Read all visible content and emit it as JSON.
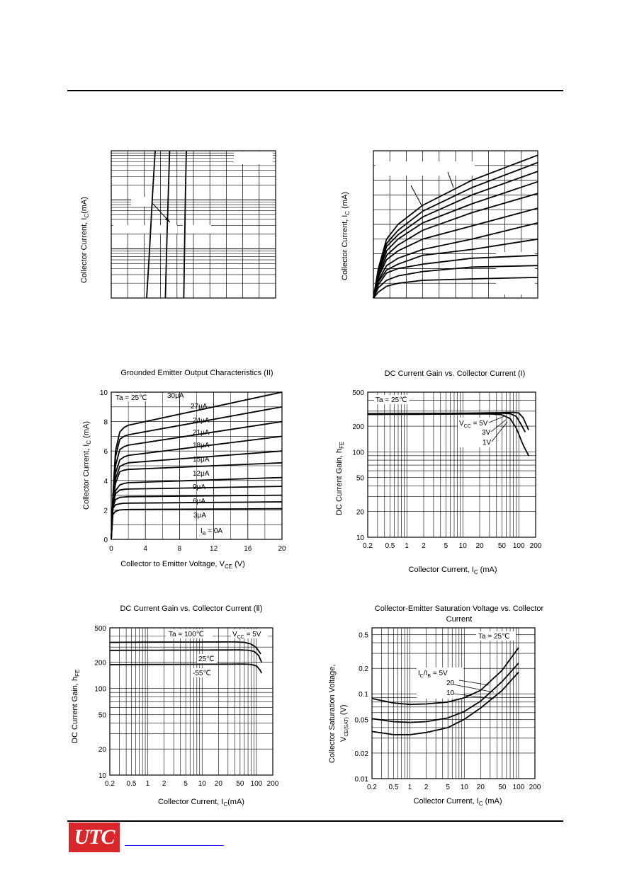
{
  "logo": {
    "text": "UTC",
    "color": "#d9262a"
  },
  "colors": {
    "line": "#000000",
    "grid": "#000000",
    "link": "#1a1aff"
  },
  "chart_data": [
    {
      "type": "line",
      "title": "",
      "xlabel": "",
      "ylabel": "Collector Current, I_C(mA)",
      "y_scale": "log",
      "grid": true,
      "series": [
        {
          "x": [
            0.0,
            0.2,
            0.4,
            0.6
          ],
          "y": [
            0.0,
            0.32,
            0.68,
            1.0
          ]
        },
        {
          "x": [
            0.22,
            0.33,
            0.44,
            0.52
          ],
          "y": [
            0.0,
            0.4,
            0.75,
            1.0
          ]
        },
        {
          "x": [
            0.42,
            0.48,
            0.54,
            0.6
          ],
          "y": [
            0.0,
            0.38,
            0.73,
            1.0
          ]
        }
      ]
    },
    {
      "type": "line",
      "title": "",
      "xlabel": "",
      "ylabel": "Collector Current, I_C (mA)",
      "grid": true,
      "series": [
        {
          "x": [
            0,
            0.03,
            0.08,
            0.15,
            0.3,
            0.6,
            1.0
          ],
          "y": [
            0,
            0.2,
            0.4,
            0.5,
            0.63,
            0.8,
            0.97
          ]
        },
        {
          "x": [
            0,
            0.03,
            0.08,
            0.15,
            0.3,
            0.6,
            1.0
          ],
          "y": [
            0,
            0.19,
            0.37,
            0.46,
            0.59,
            0.75,
            0.92
          ]
        },
        {
          "x": [
            0,
            0.03,
            0.08,
            0.15,
            0.3,
            0.6,
            1.0
          ],
          "y": [
            0,
            0.18,
            0.35,
            0.43,
            0.55,
            0.7,
            0.86
          ]
        },
        {
          "x": [
            0,
            0.03,
            0.08,
            0.15,
            0.3,
            0.6,
            1.0
          ],
          "y": [
            0,
            0.17,
            0.32,
            0.4,
            0.51,
            0.64,
            0.79
          ]
        },
        {
          "x": [
            0,
            0.03,
            0.08,
            0.15,
            0.3,
            0.6,
            1.0
          ],
          "y": [
            0,
            0.15,
            0.29,
            0.36,
            0.46,
            0.58,
            0.71
          ]
        },
        {
          "x": [
            0,
            0.03,
            0.08,
            0.15,
            0.3,
            0.6,
            1.0
          ],
          "y": [
            0,
            0.14,
            0.26,
            0.32,
            0.4,
            0.49,
            0.61
          ]
        },
        {
          "x": [
            0,
            0.03,
            0.08,
            0.15,
            0.3,
            0.6,
            1.0
          ],
          "y": [
            0,
            0.12,
            0.22,
            0.27,
            0.33,
            0.4,
            0.51
          ]
        },
        {
          "x": [
            0,
            0.03,
            0.08,
            0.15,
            0.3,
            0.6,
            1.0
          ],
          "y": [
            0,
            0.11,
            0.19,
            0.23,
            0.29,
            0.33,
            0.4
          ]
        },
        {
          "x": [
            0,
            0.03,
            0.08,
            0.15,
            0.3,
            0.6,
            1.0
          ],
          "y": [
            0,
            0.09,
            0.17,
            0.2,
            0.23,
            0.27,
            0.29
          ]
        },
        {
          "x": [
            0,
            0.03,
            0.08,
            0.15,
            0.3,
            0.6,
            1.0
          ],
          "y": [
            0,
            0.07,
            0.12,
            0.15,
            0.18,
            0.21,
            0.22
          ]
        },
        {
          "x": [
            0,
            0.03,
            0.08,
            0.15,
            0.3,
            0.6,
            1.0
          ],
          "y": [
            0,
            0.04,
            0.08,
            0.1,
            0.12,
            0.13,
            0.14
          ]
        }
      ]
    },
    {
      "type": "line",
      "title": "Grounded Emitter Output Characteristics (II)",
      "xlabel": "Collector to Emitter Voltage, V_CE (V)",
      "ylabel": "Collector Current, I_C (mA)",
      "xlim": [
        0,
        20
      ],
      "ylim": [
        0,
        10
      ],
      "xticks": [
        "0",
        "4",
        "8",
        "12",
        "16",
        "20"
      ],
      "yticks": [
        "0",
        "2",
        "4",
        "6",
        "8",
        "10"
      ],
      "grid": true,
      "annotations": {
        "ta": "Ta = 25℃"
      },
      "series": [
        {
          "name": "30μA",
          "x": [
            0,
            0.2,
            0.5,
            1.0,
            1.5,
            2.0,
            20
          ],
          "y": [
            0,
            3.0,
            6.0,
            7.3,
            7.6,
            7.75,
            10.0
          ]
        },
        {
          "name": "27μA",
          "x": [
            0,
            0.2,
            0.5,
            1.0,
            1.5,
            2.0,
            20
          ],
          "y": [
            0,
            2.9,
            5.6,
            6.8,
            7.0,
            7.1,
            9.0
          ]
        },
        {
          "name": "24μA",
          "x": [
            0,
            0.2,
            0.5,
            1.0,
            1.5,
            2.0,
            20
          ],
          "y": [
            0,
            2.8,
            5.0,
            6.1,
            6.3,
            6.4,
            8.0
          ]
        },
        {
          "name": "21μA",
          "x": [
            0,
            0.2,
            0.5,
            1.0,
            1.5,
            2.0,
            20
          ],
          "y": [
            0,
            2.7,
            4.5,
            5.4,
            5.6,
            5.7,
            7.0
          ]
        },
        {
          "name": "18μA",
          "x": [
            0,
            0.2,
            0.5,
            1.0,
            1.5,
            2.0,
            20
          ],
          "y": [
            0,
            2.6,
            4.1,
            4.95,
            5.1,
            5.2,
            6.0
          ]
        },
        {
          "name": "15μA",
          "x": [
            0,
            0.2,
            0.5,
            1.0,
            1.5,
            2.0,
            20
          ],
          "y": [
            0,
            2.5,
            3.8,
            4.6,
            4.7,
            4.75,
            5.2
          ]
        },
        {
          "name": "12μA",
          "x": [
            0,
            0.2,
            0.5,
            1.0,
            1.5,
            2.0,
            20
          ],
          "y": [
            0,
            2.4,
            3.3,
            3.7,
            3.8,
            3.85,
            4.2
          ]
        },
        {
          "name": "9μA",
          "x": [
            0,
            0.2,
            0.5,
            1.0,
            1.5,
            2.0,
            20
          ],
          "y": [
            0,
            2.3,
            3.1,
            3.35,
            3.4,
            3.42,
            3.6
          ]
        },
        {
          "name": "6μA",
          "x": [
            0,
            0.2,
            0.5,
            1.0,
            1.5,
            2.0,
            20
          ],
          "y": [
            0,
            2.2,
            2.7,
            2.85,
            2.88,
            2.9,
            3.0
          ]
        },
        {
          "name": "3μA",
          "x": [
            0,
            0.2,
            0.5,
            1.0,
            1.5,
            2.0,
            20
          ],
          "y": [
            0,
            2.1,
            2.35,
            2.42,
            2.45,
            2.46,
            2.55
          ]
        },
        {
          "name": "I_B = 0A",
          "x": [
            0,
            0.2,
            0.5,
            1.0,
            1.5,
            2.0,
            20
          ],
          "y": [
            0,
            1.7,
            1.9,
            2.0,
            2.02,
            2.03,
            2.08
          ]
        }
      ]
    },
    {
      "type": "line",
      "title": "DC Current Gain vs. Collector Current (I)",
      "xlabel": "Collector Current, I_C (mA)",
      "ylabel": "DC Current Gain, h_FE",
      "x_scale": "log",
      "y_scale": "log",
      "xlim": [
        0.2,
        200
      ],
      "ylim": [
        10,
        500
      ],
      "xticks": [
        "0.2",
        "0.5",
        "1",
        "2",
        "5",
        "10",
        "20",
        "50",
        "100",
        "200"
      ],
      "yticks": [
        "10",
        "20",
        "50",
        "100",
        "200",
        "500"
      ],
      "grid": true,
      "annotations": {
        "ta": "Ta = 25℃"
      },
      "series": [
        {
          "name": "V_CC = 5V",
          "x": [
            0.2,
            1,
            10,
            50,
            80,
            100,
            120,
            150
          ],
          "y": [
            280,
            281,
            283,
            288,
            290,
            285,
            250,
            180
          ]
        },
        {
          "name": "3V",
          "x": [
            0.2,
            1,
            10,
            50,
            70,
            90,
            110,
            130
          ],
          "y": [
            277,
            278,
            280,
            283,
            280,
            260,
            210,
            170
          ]
        },
        {
          "name": "1V",
          "x": [
            0.2,
            1,
            10,
            30,
            50,
            70,
            90,
            120,
            150
          ],
          "y": [
            274,
            275,
            277,
            278,
            272,
            245,
            190,
            120,
            90
          ]
        }
      ]
    },
    {
      "type": "line",
      "title": "DC Current Gain vs. Collector Current (Ⅱ)",
      "xlabel": "Collector Current, I_C(mA)",
      "ylabel": "DC Current Gain, h_FE",
      "x_scale": "log",
      "y_scale": "log",
      "xlim": [
        0.2,
        200
      ],
      "ylim": [
        10,
        500
      ],
      "xticks": [
        "0.2",
        "0.5",
        "1",
        "2",
        "5",
        "10",
        "20",
        "50",
        "100",
        "200"
      ],
      "yticks": [
        "10",
        "20",
        "50",
        "100",
        "200",
        "500"
      ],
      "grid": true,
      "annotations": {
        "vcc": "V_CC = 5V"
      },
      "series": [
        {
          "name": "Ta = 100℃",
          "x": [
            0.2,
            1,
            10,
            40,
            60,
            80,
            100,
            120
          ],
          "y": [
            340,
            342,
            343,
            344,
            340,
            325,
            295,
            250
          ]
        },
        {
          "name": "25℃",
          "x": [
            0.2,
            1,
            10,
            50,
            70,
            90,
            110,
            125
          ],
          "y": [
            275,
            276,
            277,
            278,
            276,
            268,
            240,
            200
          ]
        },
        {
          "name": "-55℃",
          "x": [
            0.2,
            1,
            10,
            60,
            80,
            100,
            115,
            125
          ],
          "y": [
            188,
            189,
            190,
            191,
            189,
            182,
            165,
            150
          ]
        }
      ]
    },
    {
      "type": "line",
      "title": "Collector-Emitter Saturation Voltage vs. Collector Current",
      "xlabel": "Collector Current, I_C (mA)",
      "ylabel": "Collector Saturation Voltage, V_CE(SAT) (V)",
      "x_scale": "log",
      "y_scale": "log",
      "xlim": [
        0.2,
        200
      ],
      "ylim": [
        0.01,
        0.6
      ],
      "xticks": [
        "0.2",
        "0.5",
        "1",
        "2",
        "5",
        "10",
        "20",
        "50",
        "100",
        "200"
      ],
      "yticks": [
        "0.01",
        "0.02",
        "0.05",
        "0.1",
        "0.2",
        "0.5"
      ],
      "grid": true,
      "annotations": {
        "ta": "Ta = 25℃"
      },
      "series": [
        {
          "name": "I_C/I_B = 5V",
          "x": [
            0.2,
            0.5,
            1,
            2,
            5,
            10,
            20,
            50,
            100
          ],
          "y": [
            0.088,
            0.078,
            0.075,
            0.076,
            0.08,
            0.09,
            0.11,
            0.19,
            0.35
          ]
        },
        {
          "name": "20",
          "x": [
            0.2,
            0.5,
            1,
            2,
            5,
            10,
            20,
            50,
            100
          ],
          "y": [
            0.051,
            0.047,
            0.046,
            0.047,
            0.052,
            0.062,
            0.082,
            0.14,
            0.23
          ]
        },
        {
          "name": "10",
          "x": [
            0.2,
            0.5,
            1,
            2,
            5,
            10,
            20,
            50,
            100
          ],
          "y": [
            0.036,
            0.033,
            0.033,
            0.035,
            0.04,
            0.05,
            0.068,
            0.11,
            0.18
          ]
        }
      ]
    }
  ],
  "texts": {
    "c1_ylabel": "Collector Current, I",
    "c1_ylabel_sub": "C",
    "c1_ylabel_end": "(mA)",
    "c2_ylabel": "Collector Current, I",
    "c2_ylabel_sub": "C",
    "c2_ylabel_end": " (mA)",
    "c3_title": "Grounded Emitter Output Characteristics (II)",
    "c3_ylabel": "Collector Current, I",
    "c3_ylabel_sub": "C",
    "c3_ylabel_end": " (mA)",
    "c3_xlabel": "Collector to Emitter Voltage, V",
    "c3_xlabel_sub": "CE",
    "c3_xlabel_end": " (V)",
    "c3_ta": "Ta = 25℃",
    "c3_ib": "I",
    "c3_ib_sub": "B",
    "c3_ib_end": " = 0A",
    "c4_title": "DC Current Gain vs. Collector Current (I)",
    "c4_ylabel": "DC Current Gain, h",
    "c4_ylabel_sub": "FE",
    "c4_xlabel": "Collector Current, I",
    "c4_xlabel_sub": "C",
    "c4_xlabel_end": " (mA)",
    "c4_ta": "Ta = 25℃",
    "c4_vcc": "V",
    "c4_vcc_sub": "CC",
    "c4_vcc_end": " = 5V",
    "c4_3v": "3V",
    "c4_1v": "1V",
    "c5_title": "DC Current Gain vs. Collector Current (Ⅱ)",
    "c5_ylabel": "DC Current Gain, h",
    "c5_ylabel_sub": "FE",
    "c5_xlabel": "Collector Current, I",
    "c5_xlabel_sub": "C",
    "c5_xlabel_end": "(mA)",
    "c5_ta100": "Ta = 100℃",
    "c5_ta25": "25℃",
    "c5_tam55": "-55℃",
    "c5_vcc": "V",
    "c5_vcc_sub": "CC",
    "c5_vcc_end": " = 5V",
    "c6_title1": "Collector-Emitter Saturation Voltage vs. Collector",
    "c6_title2": "Current",
    "c6_ylabel1": "Collector Saturation Voltage,",
    "c6_ylabel2": "V",
    "c6_ylabel2_sub": "CE(SAT)",
    "c6_ylabel2_end": " (V)",
    "c6_xlabel": "Collector Current, I",
    "c6_xlabel_sub": "C",
    "c6_xlabel_end": " (mA)",
    "c6_ta": "Ta = 25℃",
    "c6_ratio": "I",
    "c6_ratio_sub1": "C",
    "c6_ratio_mid": "/I",
    "c6_ratio_sub2": "B",
    "c6_ratio_end": " = 5V",
    "c6_20": "20",
    "c6_10": "10"
  }
}
